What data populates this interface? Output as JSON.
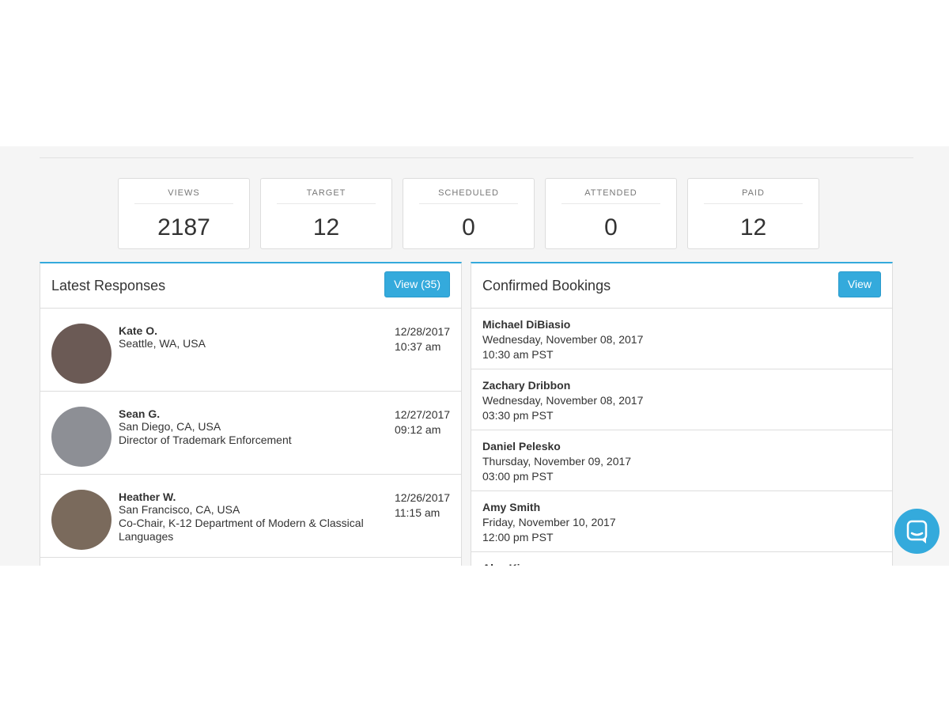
{
  "stats": [
    {
      "label": "VIEWS",
      "value": "2187"
    },
    {
      "label": "TARGET",
      "value": "12"
    },
    {
      "label": "SCHEDULED",
      "value": "0"
    },
    {
      "label": "ATTENDED",
      "value": "0"
    },
    {
      "label": "PAID",
      "value": "12"
    }
  ],
  "latest_responses": {
    "title": "Latest Responses",
    "button": "View (35)",
    "items": [
      {
        "name": "Kate O.",
        "lines": [
          "Seattle, WA, USA"
        ],
        "date": "12/28/2017",
        "time": "10:37 am"
      },
      {
        "name": "Sean G.",
        "lines": [
          "San Diego, CA, USA",
          "Director of Trademark Enforcement"
        ],
        "date": "12/27/2017",
        "time": "09:12 am"
      },
      {
        "name": "Heather W.",
        "lines": [
          "San Francisco, CA, USA",
          "Co-Chair, K-12 Department of Modern & Classical Languages"
        ],
        "date": "12/26/2017",
        "time": "11:15 am"
      }
    ]
  },
  "confirmed_bookings": {
    "title": "Confirmed Bookings",
    "button": "View",
    "items": [
      {
        "name": "Michael DiBiasio",
        "lines": [
          "Wednesday, November 08, 2017",
          "10:30 am PST"
        ]
      },
      {
        "name": "Zachary Dribbon",
        "lines": [
          "Wednesday, November 08, 2017",
          "03:30 pm PST"
        ]
      },
      {
        "name": "Daniel Pelesko",
        "lines": [
          "Thursday, November 09, 2017",
          "03:00 pm PST"
        ]
      },
      {
        "name": "Amy Smith",
        "lines": [
          "Friday, November 10, 2017",
          "12:00 pm PST"
        ]
      },
      {
        "name": "Alex Kim",
        "lines": []
      }
    ]
  }
}
